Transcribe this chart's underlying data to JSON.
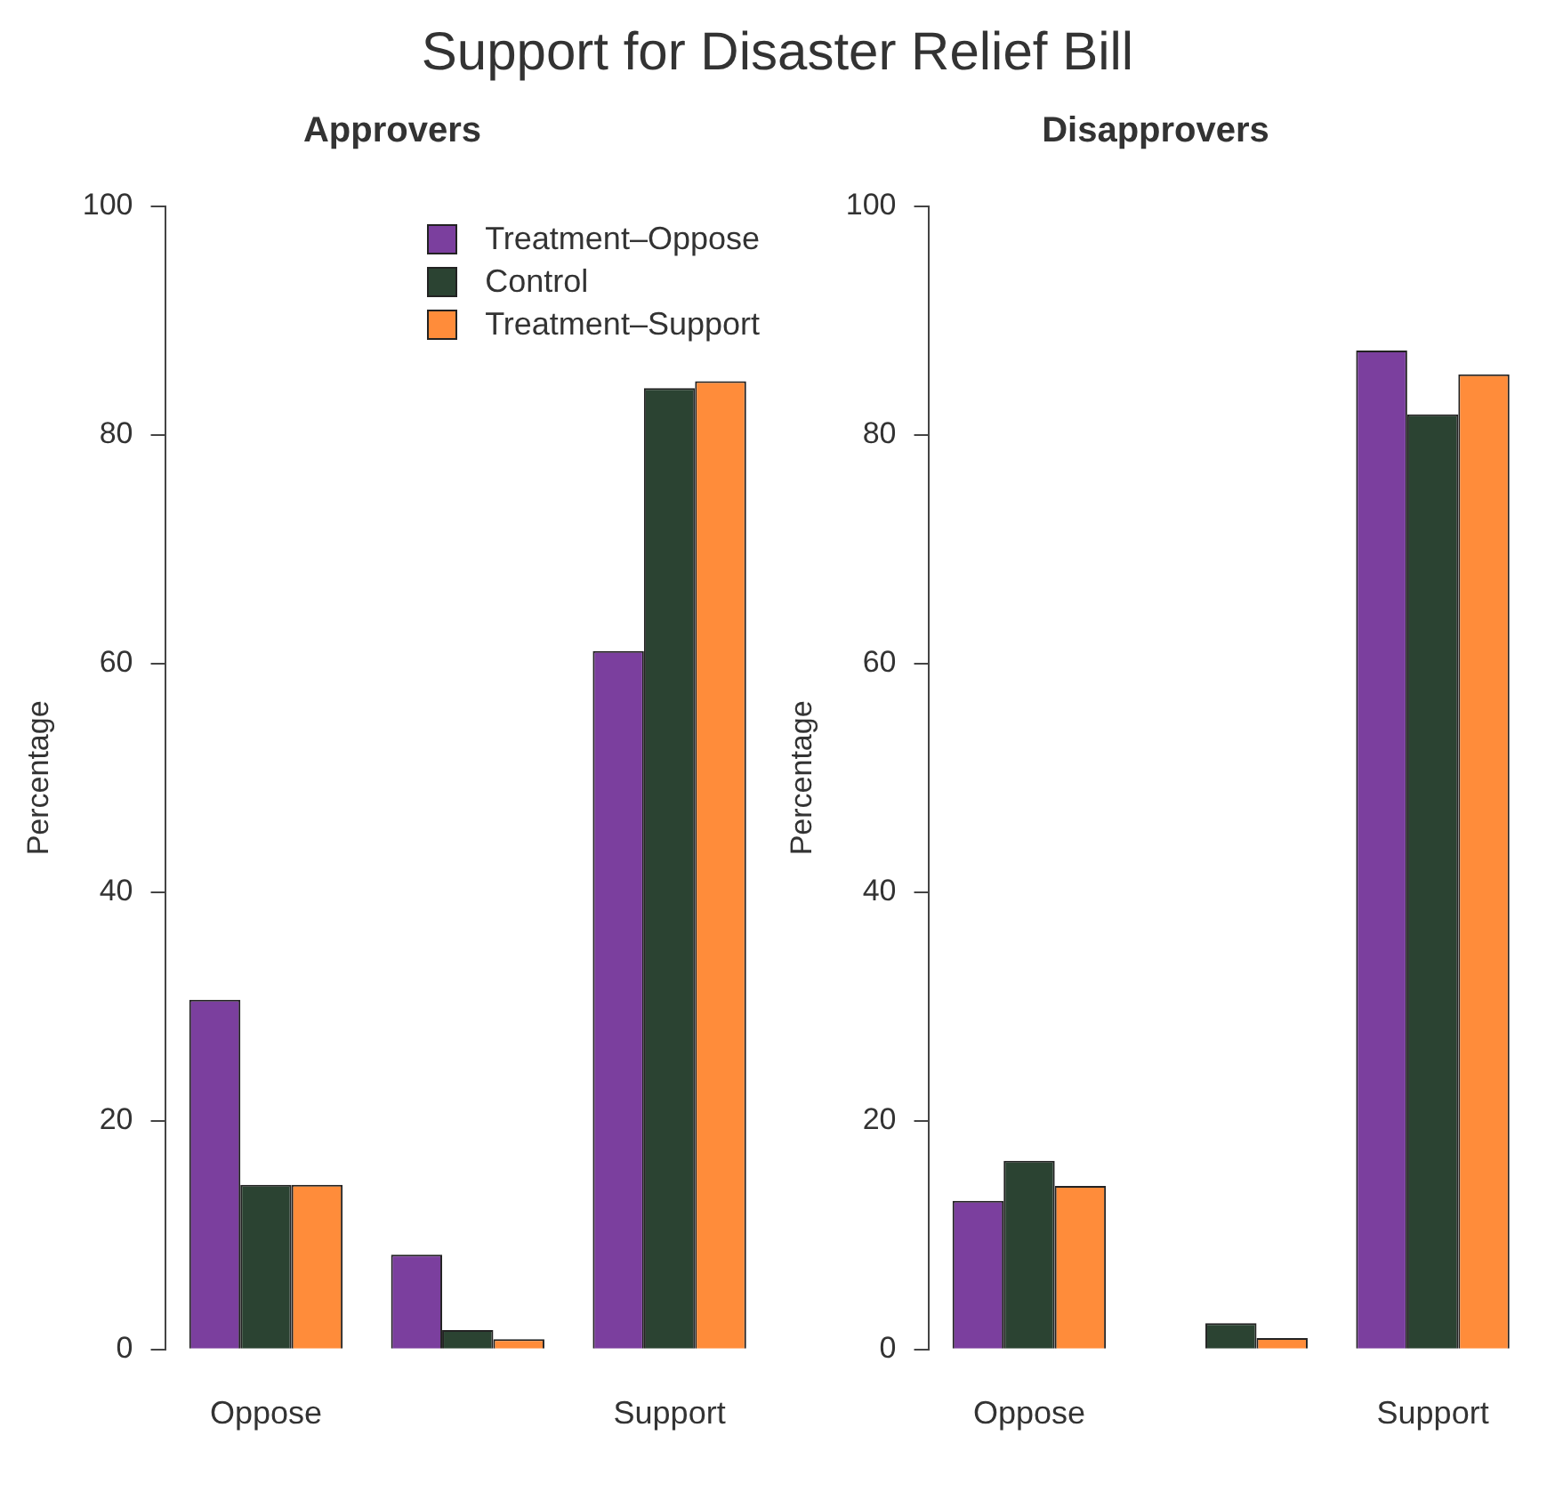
{
  "chart_data": [
    {
      "type": "bar",
      "title": "Approvers",
      "annotations": [
        "Support for Disaster Relief Bill"
      ],
      "ylabel": "Percentage",
      "categories": [
        "Oppose",
        null,
        "Support"
      ],
      "series": [
        {
          "name": "Treatment–Oppose",
          "color": "#7b3f9e",
          "values": [
            30.6,
            8.3,
            61.1
          ]
        },
        {
          "name": "Control",
          "color": "#2b4332",
          "values": [
            14.4,
            1.7,
            84.1
          ]
        },
        {
          "name": "Treatment–Support",
          "color": "#ff8c3a",
          "values": [
            14.4,
            0.9,
            84.7
          ]
        }
      ],
      "ylim": [
        0,
        100
      ],
      "yticks": [
        0,
        20,
        40,
        60,
        80,
        100
      ],
      "grid": false,
      "legend": "top right"
    },
    {
      "type": "bar",
      "title": "Disapprovers",
      "ylabel": "Percentage",
      "categories": [
        "Oppose",
        null,
        "Support"
      ],
      "series": [
        {
          "color": "#7b3f9e",
          "values": [
            13.0,
            0,
            87.4
          ]
        },
        {
          "color": "#2b4332",
          "values": [
            16.5,
            2.3,
            81.8
          ]
        },
        {
          "color": "#ff8c3a",
          "values": [
            14.3,
            1.0,
            85.3
          ]
        }
      ],
      "ylim": [
        0,
        100
      ],
      "yticks": [
        0,
        20,
        40,
        60,
        80,
        100
      ],
      "grid": false
    }
  ]
}
